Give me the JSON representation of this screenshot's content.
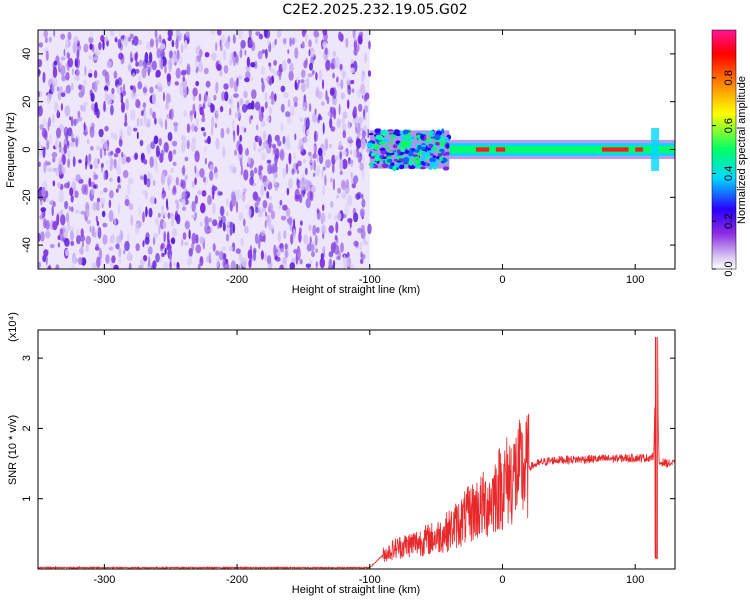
{
  "title": "C2E2.2025.232.19.05.G02",
  "chart_data": [
    {
      "type": "heatmap",
      "xlabel": "Height of straight line (km)",
      "ylabel": "Frequency (Hz)",
      "xlim": [
        -350,
        130
      ],
      "ylim": [
        -50,
        50
      ],
      "x_ticks": [
        -300,
        -200,
        -100,
        0,
        100
      ],
      "y_ticks": [
        -40,
        -20,
        0,
        20,
        40
      ],
      "colorbar": {
        "label": "Normalized spectral amplitude",
        "range": [
          0,
          1
        ],
        "ticks": [
          "0.0",
          "0.2",
          "0.4",
          "0.6",
          "0.8"
        ],
        "colormap": [
          "#ffffff",
          "#d8c8f4",
          "#8a2be2",
          "#2a00ff",
          "#00d8ff",
          "#00ff66",
          "#ffff00",
          "#ff8000",
          "#ff0000",
          "#ff1493"
        ]
      },
      "regions": [
        {
          "x_range": [
            -350,
            -100
          ],
          "freq_range": [
            -50,
            50
          ],
          "amplitude_range": [
            0.0,
            0.2
          ]
        },
        {
          "x_range": [
            -100,
            -40
          ],
          "freq_range": [
            -8,
            8
          ],
          "amplitude_range": [
            0.1,
            0.45
          ]
        },
        {
          "x_range": [
            -40,
            130
          ],
          "freq_range": [
            -3,
            3
          ],
          "amplitude_range": [
            0.3,
            1.0
          ]
        }
      ]
    },
    {
      "type": "line",
      "xlabel": "Height of straight line (km)",
      "ylabel": "SNR (10 * v/v)",
      "y_multiplier": "(x10⁴)",
      "xlim": [
        -350,
        130
      ],
      "ylim": [
        0,
        3.4
      ],
      "x_ticks": [
        -300,
        -200,
        -100,
        0,
        100
      ],
      "y_ticks": [
        1,
        2,
        3
      ],
      "color": "#e8282a",
      "x": [
        -350,
        -300,
        -200,
        -100,
        -90,
        -80,
        -70,
        -60,
        -50,
        -40,
        -30,
        -20,
        -10,
        -5,
        0,
        10,
        20,
        30,
        40,
        60,
        80,
        100,
        110,
        114,
        116,
        118,
        120,
        125,
        130
      ],
      "y": [
        0.02,
        0.02,
        0.02,
        0.02,
        0.2,
        0.3,
        0.35,
        0.4,
        0.45,
        0.55,
        0.7,
        0.85,
        0.95,
        1.1,
        1.2,
        1.35,
        1.45,
        1.52,
        1.55,
        1.56,
        1.57,
        1.58,
        1.58,
        1.6,
        3.3,
        1.5,
        1.52,
        1.5,
        1.5
      ]
    }
  ]
}
